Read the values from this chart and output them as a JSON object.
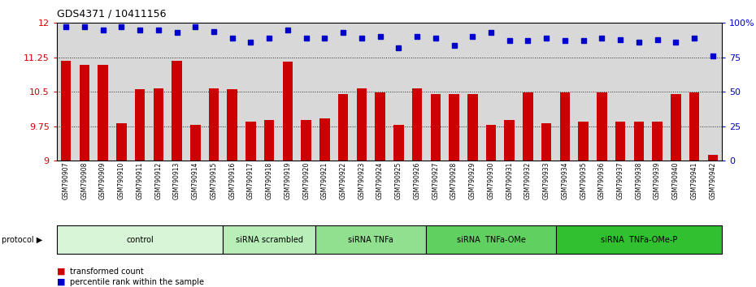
{
  "title": "GDS4371 / 10411156",
  "samples": [
    "GSM790907",
    "GSM790908",
    "GSM790909",
    "GSM790910",
    "GSM790911",
    "GSM790912",
    "GSM790913",
    "GSM790914",
    "GSM790915",
    "GSM790916",
    "GSM790917",
    "GSM790918",
    "GSM790919",
    "GSM790920",
    "GSM790921",
    "GSM790922",
    "GSM790923",
    "GSM790924",
    "GSM790925",
    "GSM790926",
    "GSM790927",
    "GSM790928",
    "GSM790929",
    "GSM790930",
    "GSM790931",
    "GSM790932",
    "GSM790933",
    "GSM790934",
    "GSM790935",
    "GSM790936",
    "GSM790937",
    "GSM790938",
    "GSM790939",
    "GSM790940",
    "GSM790941",
    "GSM790942"
  ],
  "bar_values": [
    11.18,
    11.08,
    11.08,
    9.82,
    10.55,
    10.58,
    11.18,
    9.78,
    10.58,
    10.55,
    9.85,
    9.88,
    11.15,
    9.88,
    9.92,
    10.45,
    10.58,
    10.48,
    9.78,
    10.58,
    10.45,
    10.45,
    10.45,
    9.78,
    9.88,
    10.48,
    9.82,
    10.48,
    9.85,
    10.48,
    9.85,
    9.85,
    9.85,
    10.45,
    10.48,
    9.12
  ],
  "percentile_values": [
    97,
    97,
    95,
    97,
    95,
    95,
    93,
    97,
    94,
    89,
    86,
    89,
    95,
    89,
    89,
    93,
    89,
    90,
    82,
    90,
    89,
    84,
    90,
    93,
    87,
    87,
    89,
    87,
    87,
    89,
    88,
    86,
    88,
    86,
    89,
    76
  ],
  "ylim": [
    9.0,
    12.0
  ],
  "yticks_left": [
    9.0,
    9.75,
    10.5,
    11.25,
    12.0
  ],
  "ytick_labels_left": [
    "9",
    "9.75",
    "10.5",
    "11.25",
    "12"
  ],
  "yticks_right": [
    0,
    25,
    50,
    75,
    100
  ],
  "ytick_labels_right": [
    "0",
    "25",
    "50",
    "75",
    "100%"
  ],
  "bar_color": "#cc0000",
  "dot_color": "#0000cc",
  "bg_color": "#d8d8d8",
  "protocol_groups": [
    {
      "label": "control",
      "start": 0,
      "end": 8,
      "color": "#d8f5d8"
    },
    {
      "label": "siRNA scrambled",
      "start": 9,
      "end": 13,
      "color": "#b8eeb8"
    },
    {
      "label": "siRNA TNFa",
      "start": 14,
      "end": 19,
      "color": "#90e090"
    },
    {
      "label": "siRNA  TNFa-OMe",
      "start": 20,
      "end": 26,
      "color": "#60d060"
    },
    {
      "label": "siRNA  TNFa-OMe-P",
      "start": 27,
      "end": 35,
      "color": "#30c030"
    }
  ],
  "xlabel_color": "#cc0000",
  "dot_color_str": "#0000cc"
}
